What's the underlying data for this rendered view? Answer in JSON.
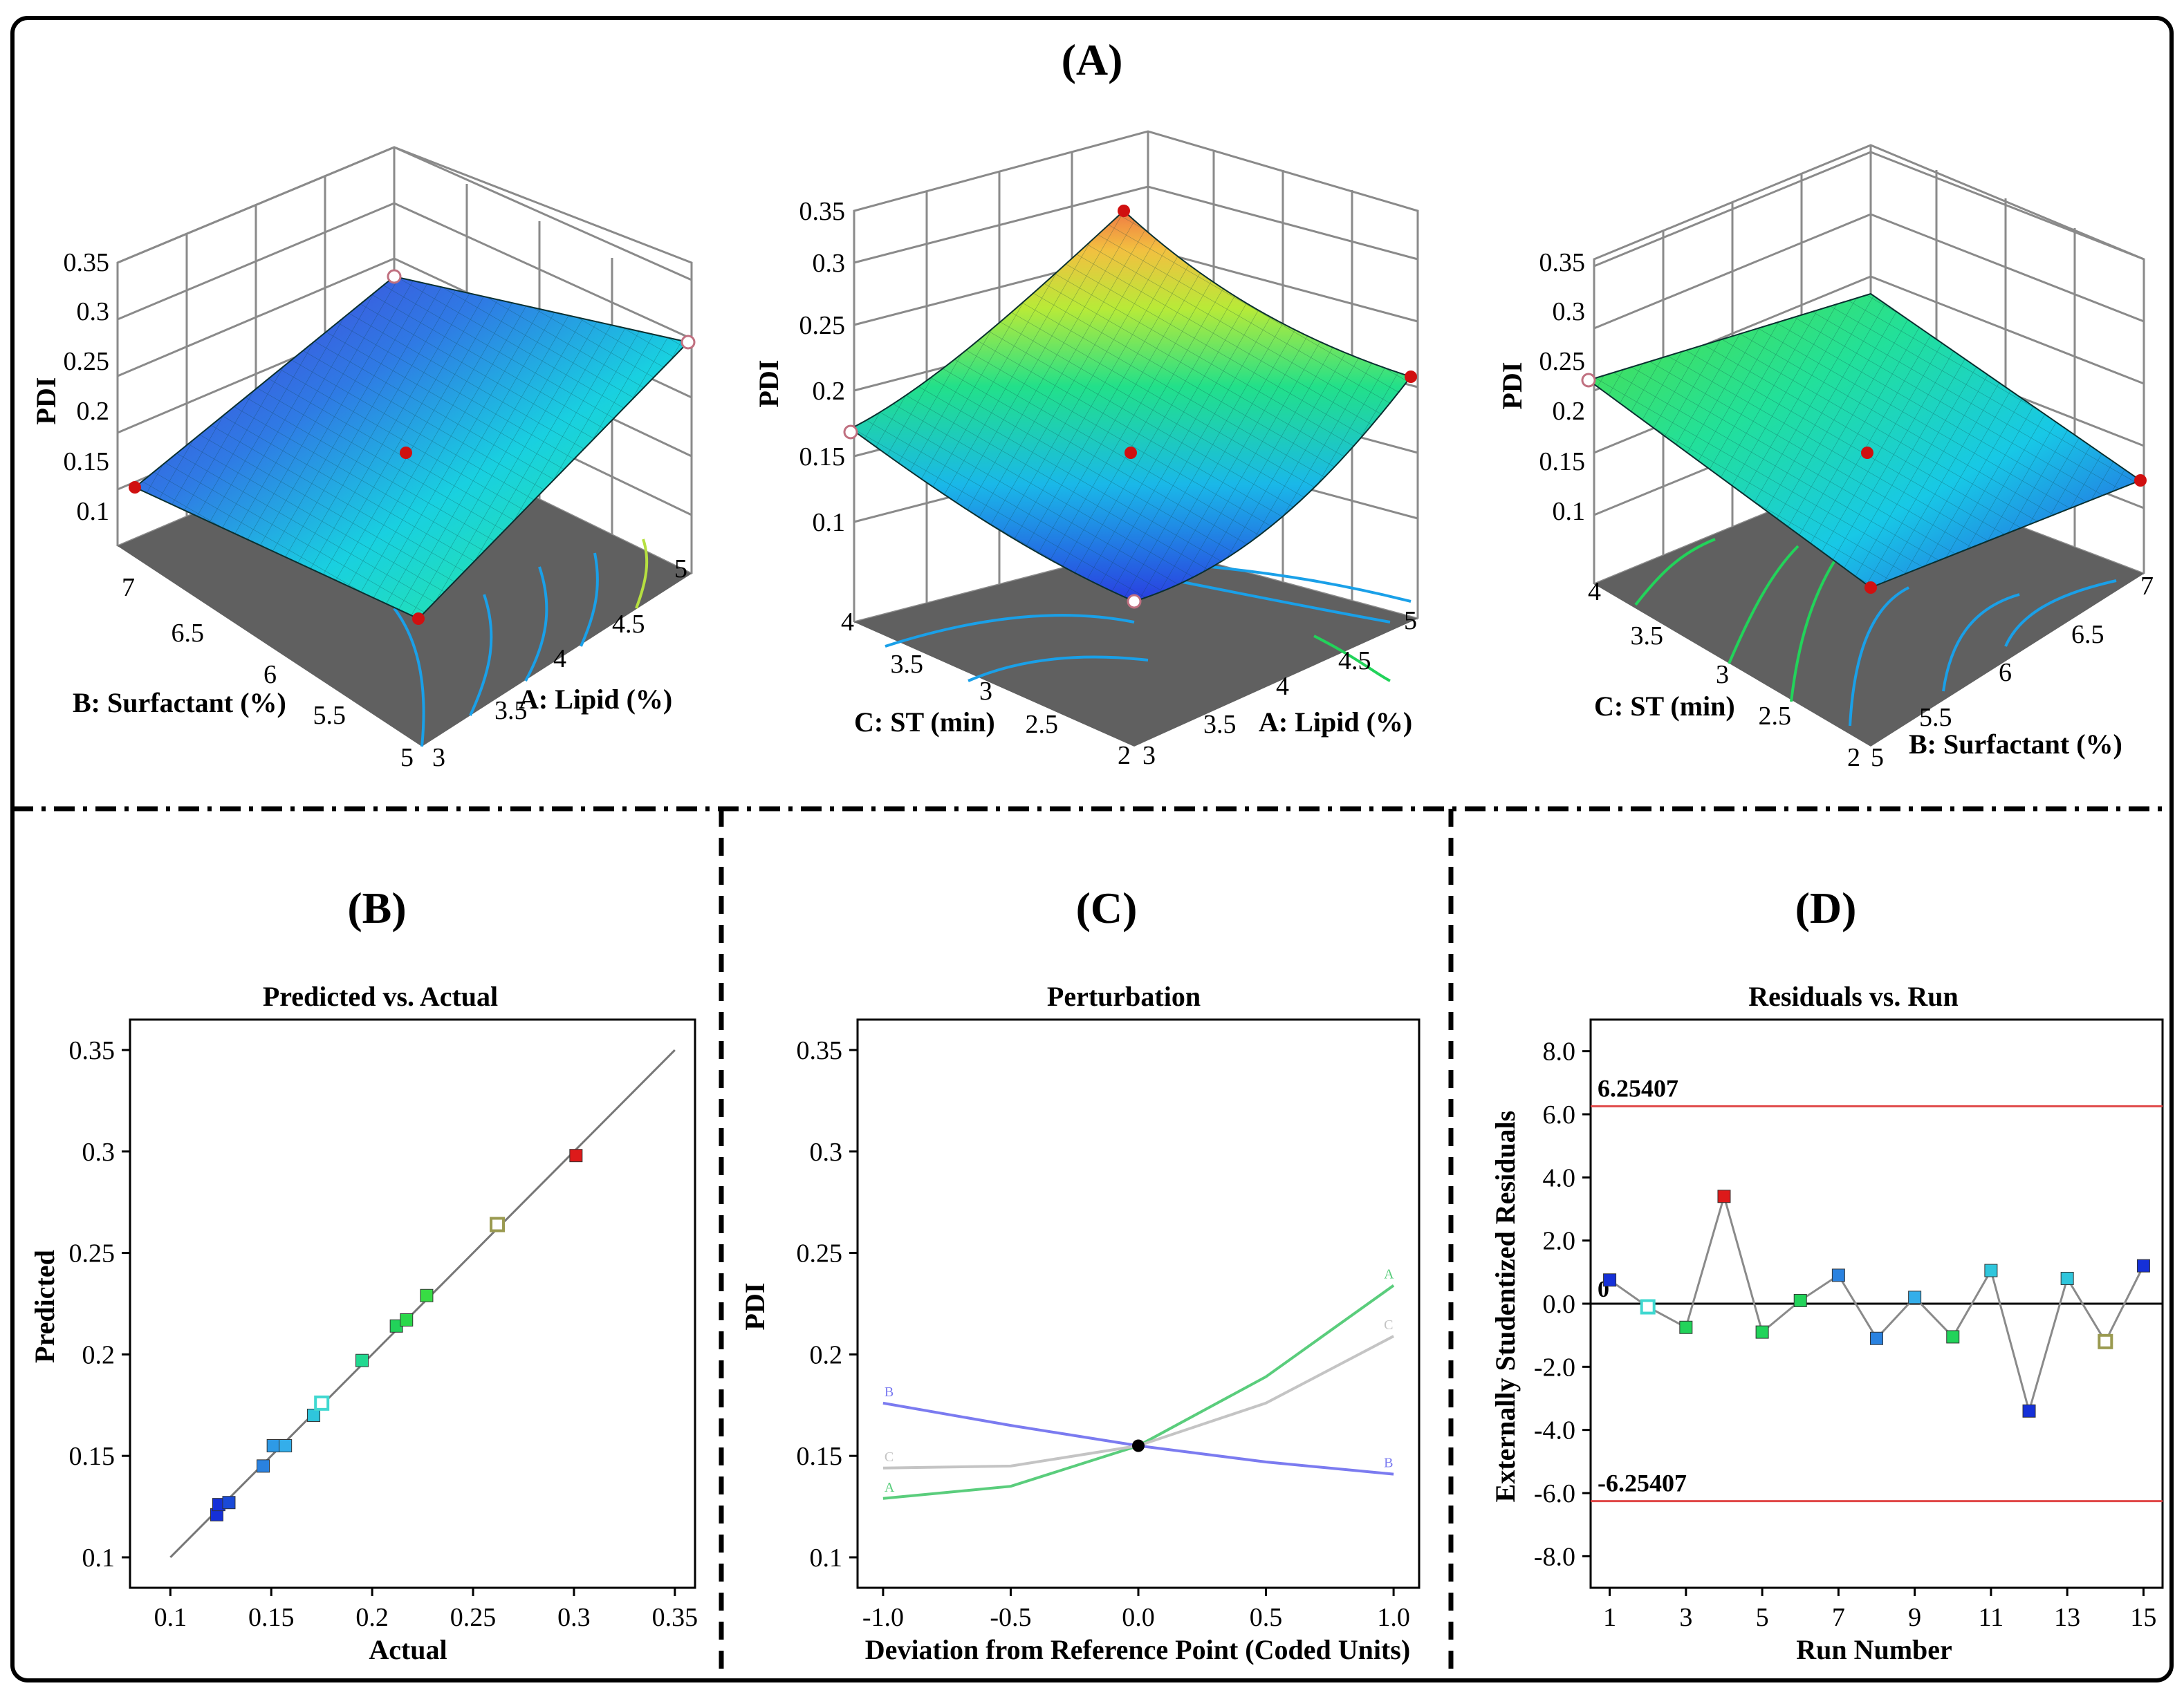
{
  "panels": {
    "A": "(A)",
    "B": "(B)",
    "C": "(C)",
    "D": "(D)"
  },
  "surfaces": [
    {
      "zlabel": "PDI",
      "zticks": [
        "0.1",
        "0.15",
        "0.2",
        "0.25",
        "0.3",
        "0.35"
      ],
      "left_axis_label": "B: Surfactant (%)",
      "left_ticks": [
        "7",
        "6.5",
        "6",
        "5.5",
        "5"
      ],
      "right_axis_label": "A: Lipid (%)",
      "right_ticks": [
        "3",
        "3.5",
        "4",
        "4.5",
        "5"
      ]
    },
    {
      "zlabel": "PDI",
      "zticks": [
        "0.1",
        "0.15",
        "0.2",
        "0.25",
        "0.3",
        "0.35"
      ],
      "left_axis_label": "C: ST (min)",
      "left_ticks": [
        "4",
        "3.5",
        "3",
        "2.5",
        "2"
      ],
      "right_axis_label": "A: Lipid (%)",
      "right_ticks": [
        "3",
        "3.5",
        "4",
        "4.5",
        "5"
      ]
    },
    {
      "zlabel": "PDI",
      "zticks": [
        "0.1",
        "0.15",
        "0.2",
        "0.25",
        "0.3",
        "0.35"
      ],
      "left_axis_label": "C: ST (min)",
      "left_ticks": [
        "4",
        "3.5",
        "3",
        "2.5",
        "2"
      ],
      "right_axis_label": "B: Surfactant (%)",
      "right_ticks": [
        "5",
        "5.5",
        "6",
        "6.5",
        "7"
      ]
    }
  ],
  "chart_data": [
    {
      "type": "scatter",
      "title": "Predicted vs. Actual",
      "xlabel": "Actual",
      "ylabel": "Predicted",
      "xlim": [
        0.08,
        0.36
      ],
      "ylim": [
        0.085,
        0.365
      ],
      "xticks": [
        "0.1",
        "0.15",
        "0.2",
        "0.25",
        "0.3",
        "0.35"
      ],
      "yticks": [
        "0.1",
        "0.15",
        "0.2",
        "0.25",
        "0.3",
        "0.35"
      ],
      "reference_line": [
        [
          0.1,
          0.1
        ],
        [
          0.35,
          0.35
        ]
      ],
      "points": [
        {
          "x": 0.123,
          "y": 0.121,
          "color": "#1530d8"
        },
        {
          "x": 0.124,
          "y": 0.126,
          "color": "#1530d8"
        },
        {
          "x": 0.129,
          "y": 0.127,
          "color": "#1a4ad8"
        },
        {
          "x": 0.146,
          "y": 0.145,
          "color": "#2a82e0"
        },
        {
          "x": 0.151,
          "y": 0.155,
          "color": "#2e9ae6"
        },
        {
          "x": 0.157,
          "y": 0.155,
          "color": "#34aeea"
        },
        {
          "x": 0.171,
          "y": 0.17,
          "color": "#2fc6dc"
        },
        {
          "x": 0.175,
          "y": 0.176,
          "color": "#40d8d0",
          "hollow": true
        },
        {
          "x": 0.195,
          "y": 0.197,
          "color": "#22d890"
        },
        {
          "x": 0.212,
          "y": 0.214,
          "color": "#22d35a"
        },
        {
          "x": 0.217,
          "y": 0.217,
          "color": "#2ad84a"
        },
        {
          "x": 0.227,
          "y": 0.229,
          "color": "#38dc44"
        },
        {
          "x": 0.262,
          "y": 0.264,
          "color": "#9a9a50",
          "hollow": true
        },
        {
          "x": 0.301,
          "y": 0.298,
          "color": "#dd1a1a"
        }
      ]
    },
    {
      "type": "line",
      "title": "Perturbation",
      "xlabel": "Deviation from Reference Point (Coded Units)",
      "ylabel": "PDI",
      "xlim": [
        -1.1,
        1.1
      ],
      "ylim": [
        0.085,
        0.365
      ],
      "xticks": [
        "-1.0",
        "-0.5",
        "0.0",
        "0.5",
        "1.0"
      ],
      "yticks": [
        "0.1",
        "0.15",
        "0.2",
        "0.25",
        "0.3",
        "0.35"
      ],
      "reference_point": {
        "x": 0,
        "y": 0.155
      },
      "series": [
        {
          "name": "A",
          "color": "#5acd7c",
          "x": [
            -1,
            -0.5,
            0,
            0.5,
            1
          ],
          "y": [
            0.129,
            0.135,
            0.155,
            0.189,
            0.234
          ]
        },
        {
          "name": "B",
          "color": "#7b7bf0",
          "x": [
            -1,
            -0.5,
            0,
            0.5,
            1
          ],
          "y": [
            0.176,
            0.165,
            0.155,
            0.147,
            0.141
          ]
        },
        {
          "name": "C",
          "color": "#c4c4c4",
          "x": [
            -1,
            -0.5,
            0,
            0.5,
            1
          ],
          "y": [
            0.144,
            0.145,
            0.155,
            0.176,
            0.209
          ]
        }
      ]
    },
    {
      "type": "line",
      "title": "Residuals vs. Run",
      "xlabel": "Run Number",
      "ylabel": "Externally Studentized Residuals",
      "xlim": [
        0.5,
        15.5
      ],
      "ylim": [
        -9,
        9
      ],
      "xticks": [
        "1",
        "3",
        "5",
        "7",
        "9",
        "11",
        "13",
        "15"
      ],
      "yticks": [
        "8.0",
        "6.0",
        "4.0",
        "2.0",
        "0.0",
        "-2.0",
        "-4.0",
        "-6.0",
        "-8.0"
      ],
      "limits": [
        6.25407,
        -6.25407
      ],
      "limit_labels": [
        "6.25407",
        "-6.25407"
      ],
      "zero_label": "0",
      "runs": [
        1,
        2,
        3,
        4,
        5,
        6,
        7,
        8,
        9,
        10,
        11,
        12,
        13,
        14,
        15
      ],
      "residuals": [
        0.75,
        -0.1,
        -0.75,
        3.4,
        -0.9,
        0.1,
        0.9,
        -1.1,
        0.2,
        -1.05,
        1.05,
        -3.4,
        0.8,
        -1.2,
        1.2
      ],
      "point_colors": [
        "#1530d8",
        "#40d8d0",
        "#22d35a",
        "#dd1a1a",
        "#22d35a",
        "#22d35a",
        "#2a82e0",
        "#2a82e0",
        "#34aeea",
        "#22d35a",
        "#2fc6dc",
        "#1530d8",
        "#2fc6dc",
        "#9a9a50",
        "#1530d8"
      ],
      "hollow_runs": [
        2,
        14
      ]
    }
  ]
}
